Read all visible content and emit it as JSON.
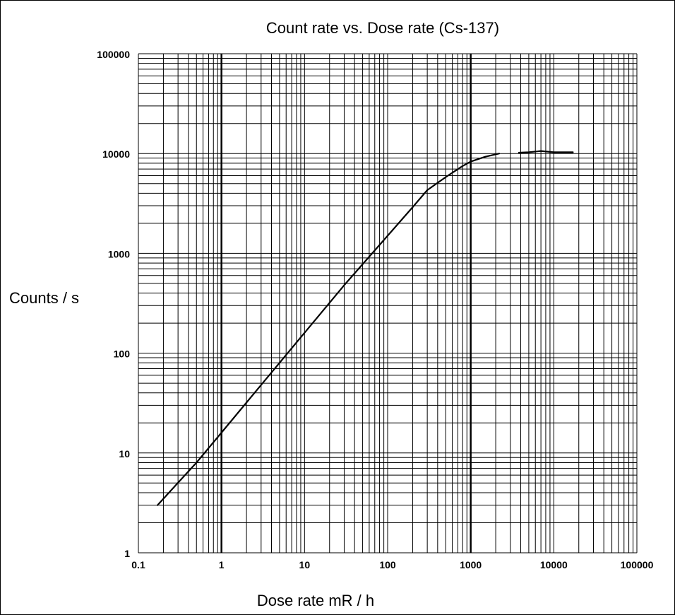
{
  "chart_data": {
    "type": "line",
    "title": "Count rate vs. Dose rate (Cs-137)",
    "xlabel": "Dose rate mR / h",
    "ylabel": "Counts / s",
    "xscale": "log",
    "yscale": "log",
    "xlim": [
      0.1,
      100000
    ],
    "ylim": [
      1,
      100000
    ],
    "grid": true,
    "x_ticks": [
      0.1,
      1,
      10,
      100,
      1000,
      10000,
      100000
    ],
    "x_tick_labels": [
      "0.1",
      "1",
      "10",
      "100",
      "1000",
      "10000",
      "100000"
    ],
    "y_ticks": [
      1,
      10,
      100,
      1000,
      10000,
      100000
    ],
    "y_tick_labels": [
      "1",
      "10",
      "100",
      "1000",
      "10000",
      "100000"
    ],
    "series": [
      {
        "color": "#000000",
        "points": [
          [
            0.17,
            3
          ],
          [
            0.5,
            8
          ],
          [
            1,
            16
          ],
          [
            3,
            48
          ],
          [
            10,
            160
          ],
          [
            30,
            480
          ],
          [
            100,
            1500
          ],
          [
            200,
            2900
          ],
          [
            300,
            4300
          ],
          [
            500,
            5800
          ],
          [
            800,
            7500
          ],
          [
            1000,
            8300
          ],
          [
            1500,
            9300
          ],
          [
            2200,
            10000
          ]
        ]
      },
      {
        "color": "#000000",
        "points": [
          [
            3800,
            10200
          ],
          [
            5000,
            10300
          ],
          [
            7000,
            10600
          ],
          [
            10000,
            10300
          ],
          [
            17000,
            10300
          ]
        ]
      }
    ]
  }
}
